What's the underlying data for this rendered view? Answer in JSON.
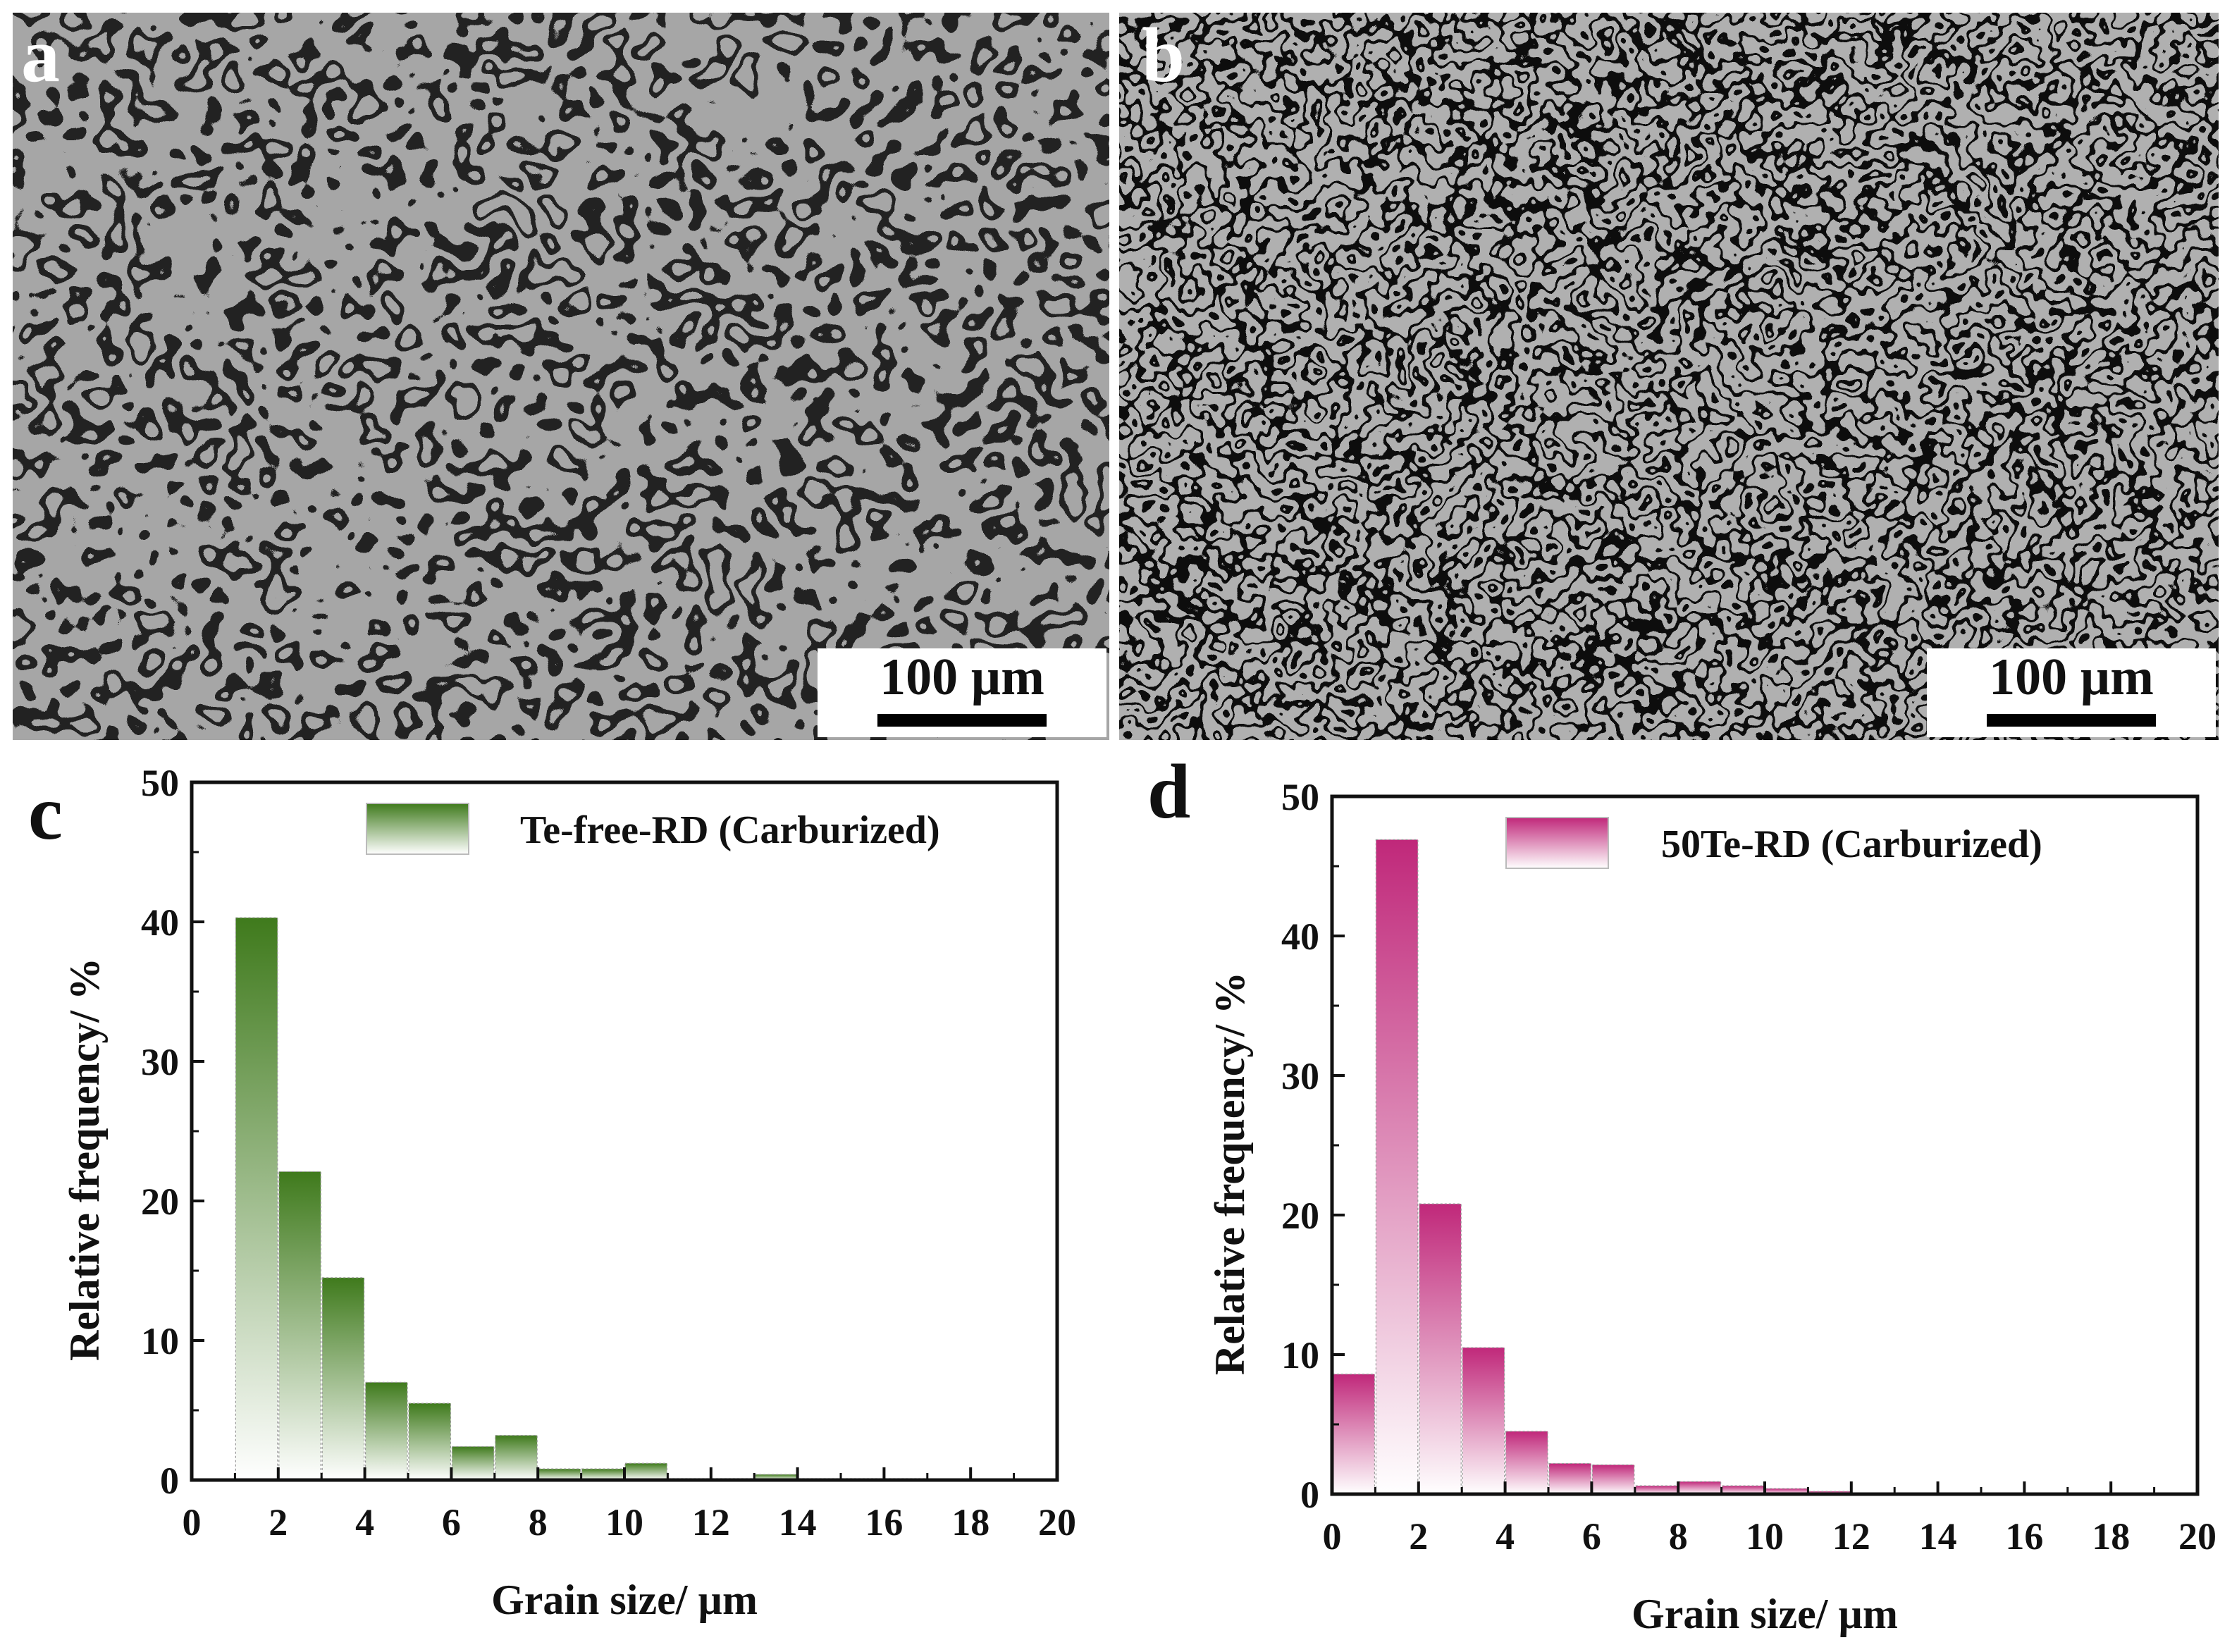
{
  "panels": {
    "a": {
      "label": "a",
      "scale_bar": "100 µm"
    },
    "b": {
      "label": "b",
      "scale_bar": "100 µm"
    },
    "c": {
      "label": "c"
    },
    "d": {
      "label": "d"
    }
  },
  "colors": {
    "c_bar": "#3f7a1c",
    "d_bar": "#c0287a",
    "axis": "#111111"
  },
  "chart_data": [
    {
      "panel": "c",
      "type": "bar",
      "series": [
        {
          "name": "Te-free-RD (Carburized)",
          "x": [
            1.5,
            2.5,
            3.5,
            4.5,
            5.5,
            6.5,
            7.5,
            8.5,
            9.5,
            10.5,
            11.5,
            12.5,
            13.5,
            14.5,
            15.5,
            16.5,
            17.5,
            18.5,
            19.5
          ],
          "values": [
            40.3,
            22.1,
            14.5,
            7.0,
            5.5,
            2.4,
            3.2,
            0.8,
            0.8,
            1.2,
            0.1,
            0.1,
            0.4,
            0.1,
            0.1,
            0.1,
            0.05,
            0.05,
            0.05
          ]
        }
      ],
      "bin_width": 1,
      "xlabel": "Grain size/ µm",
      "ylabel": "Relative frequency/ %",
      "xlim": [
        0,
        20
      ],
      "ylim": [
        0,
        50
      ],
      "xticks": [
        "0",
        "2",
        "4",
        "6",
        "8",
        "10",
        "12",
        "14",
        "16",
        "18",
        "20"
      ],
      "yticks": [
        "0",
        "10",
        "20",
        "30",
        "40",
        "50"
      ],
      "grid": false,
      "legend": "top-center"
    },
    {
      "panel": "d",
      "type": "bar",
      "series": [
        {
          "name": "50Te-RD (Carburized)",
          "x": [
            0.5,
            1.5,
            2.5,
            3.5,
            4.5,
            5.5,
            6.5,
            7.5,
            8.5,
            9.5,
            10.5,
            11.5,
            12.5,
            13.5,
            14.5,
            15.5,
            16.5,
            17.5,
            18.5,
            19.5
          ],
          "values": [
            8.6,
            46.9,
            20.8,
            10.5,
            4.5,
            2.2,
            2.1,
            0.6,
            0.9,
            0.6,
            0.4,
            0.2,
            0.05,
            0.05,
            0.05,
            0.05,
            0.05,
            0.05,
            0.05,
            0.05
          ]
        }
      ],
      "bin_width": 1,
      "xlabel": "Grain size/ µm",
      "ylabel": "Relative frequency/ %",
      "xlim": [
        0,
        20
      ],
      "ylim": [
        0,
        50
      ],
      "xticks": [
        "0",
        "2",
        "4",
        "6",
        "8",
        "10",
        "12",
        "14",
        "16",
        "18",
        "20"
      ],
      "yticks": [
        "0",
        "10",
        "20",
        "30",
        "40",
        "50"
      ],
      "grid": false,
      "legend": "top-center"
    }
  ]
}
